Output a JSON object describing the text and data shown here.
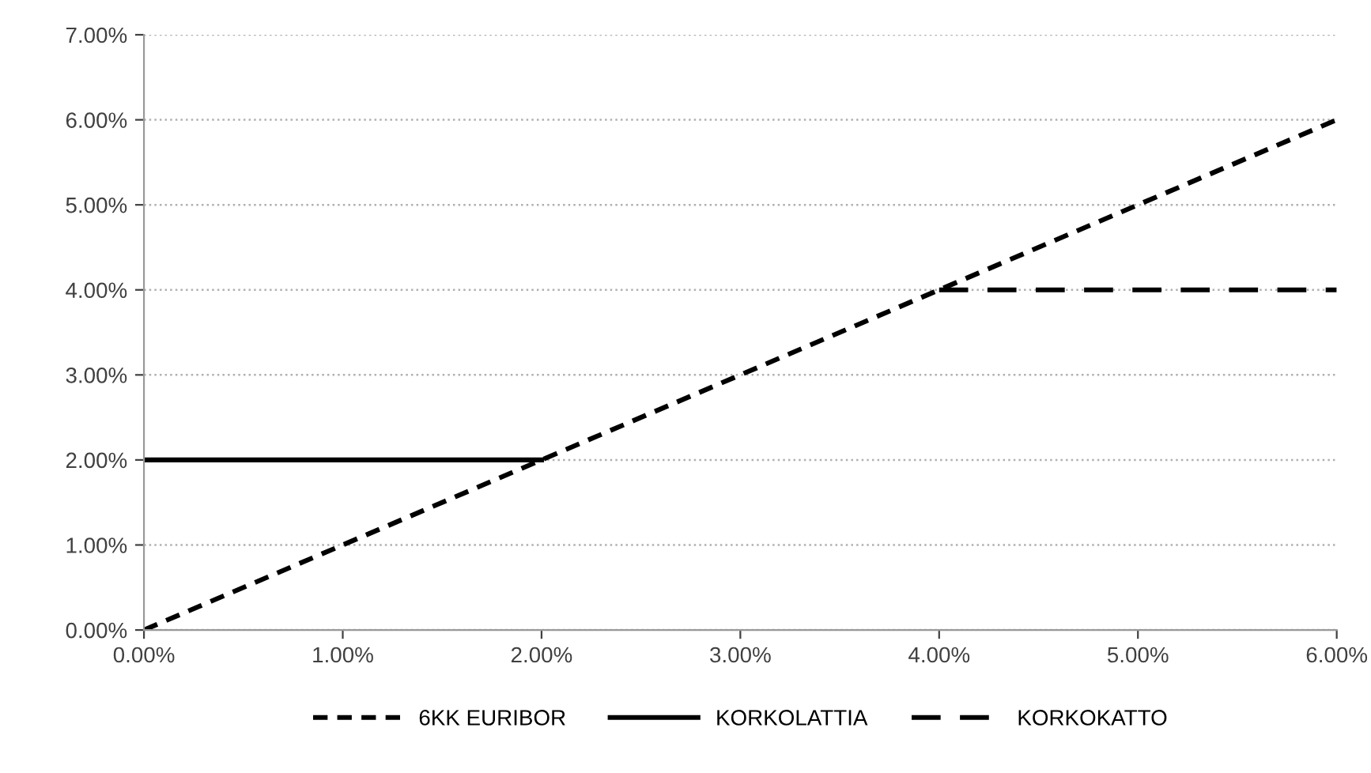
{
  "chart_data": {
    "type": "line",
    "series": [
      {
        "name": "6KK EURIBOR",
        "color": "#000000",
        "x": [
          0,
          6
        ],
        "values": [
          0,
          6
        ],
        "line_style": "dotted"
      },
      {
        "name": "KORKOLATTIA",
        "color": "#000000",
        "x": [
          0,
          2
        ],
        "values": [
          2,
          2
        ],
        "line_style": "solid"
      },
      {
        "name": "KORKOKATTO",
        "color": "#000000",
        "x": [
          4,
          6
        ],
        "values": [
          4,
          4
        ],
        "line_style": "dashed"
      }
    ],
    "xlim": [
      0,
      6
    ],
    "xticks": [
      {
        "value": 0,
        "label": "0.00%"
      },
      {
        "value": 1,
        "label": "1.00%"
      },
      {
        "value": 2,
        "label": "2.00%"
      },
      {
        "value": 3,
        "label": "3.00%"
      },
      {
        "value": 4,
        "label": "4.00%"
      },
      {
        "value": 5,
        "label": "5.00%"
      },
      {
        "value": 6,
        "label": "6.00%"
      }
    ],
    "ylim": [
      0,
      7
    ],
    "yticks": [
      {
        "value": 0,
        "label": "0.00%"
      },
      {
        "value": 1,
        "label": "1.00%"
      },
      {
        "value": 2,
        "label": "2.00%"
      },
      {
        "value": 3,
        "label": "3.00%"
      },
      {
        "value": 4,
        "label": "4.00%"
      },
      {
        "value": 5,
        "label": "5.00%"
      },
      {
        "value": 6,
        "label": "6.00%"
      },
      {
        "value": 7,
        "label": "7.00%"
      }
    ],
    "grid": "y",
    "legend": "bottom",
    "marker": "none"
  }
}
